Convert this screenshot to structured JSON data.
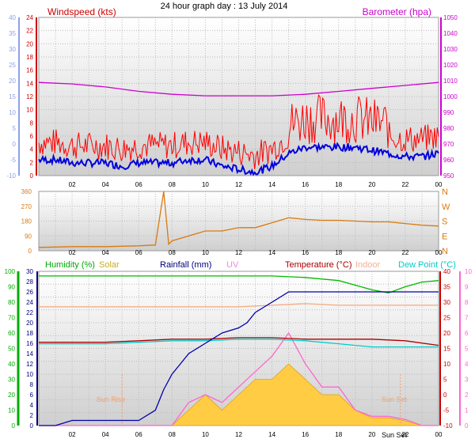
{
  "chart_data": [
    {
      "type": "line",
      "title": "24 hour graph day : 13 July 2014",
      "x_ticks": [
        "02",
        "04",
        "06",
        "08",
        "10",
        "12",
        "14",
        "16",
        "18",
        "20",
        "22",
        "00"
      ],
      "left_axis": {
        "label": "Windspeed (kts)",
        "color": "#cc0000",
        "ticks": [
          "24",
          "22",
          "20",
          "18",
          "16",
          "14",
          "12",
          "10",
          "8",
          "6",
          "4",
          "2",
          "0"
        ],
        "ylim": [
          0,
          25
        ]
      },
      "left_outer_axis": {
        "color": "#8fa0e8",
        "ticks": [
          "40",
          "35",
          "30",
          "25",
          "20",
          "15",
          "10",
          "5",
          "0",
          "-5",
          "-10"
        ]
      },
      "right_axis": {
        "label": "Barometer (hpa)",
        "color": "#cc00cc",
        "ticks": [
          "1050",
          "1040",
          "1030",
          "1020",
          "1010",
          "1000",
          "990",
          "980",
          "970",
          "960",
          "950"
        ],
        "ylim": [
          945,
          1052
        ]
      },
      "series": [
        {
          "name": "Windspeed (kts)",
          "color": "#ff0000",
          "style": "spiky",
          "x": [
            0,
            1,
            2,
            3,
            4,
            5,
            6,
            7,
            8,
            9,
            10,
            11,
            12,
            13,
            14,
            15,
            16,
            17,
            18,
            19,
            20,
            21,
            22,
            23,
            24
          ],
          "y": [
            3,
            3,
            2.5,
            2.5,
            2.5,
            2,
            2.5,
            2.5,
            2.5,
            3,
            3,
            2,
            1.5,
            1,
            2,
            4,
            5,
            5,
            5,
            5,
            4.5,
            4,
            3.5,
            3.5,
            4
          ]
        },
        {
          "name": "Barometer (hpa)",
          "color": "#cc00cc",
          "x": [
            0,
            2,
            4,
            6,
            8,
            10,
            12,
            14,
            16,
            18,
            20,
            22,
            24
          ],
          "y": [
            1008,
            1007,
            1005,
            1002,
            1000,
            999,
            999,
            999,
            1000,
            1002,
            1004,
            1006,
            1008
          ]
        }
      ]
    },
    {
      "type": "line",
      "x_ticks": [
        "02",
        "04",
        "06",
        "08",
        "10",
        "12",
        "14",
        "16",
        "18",
        "20",
        "22",
        "00"
      ],
      "left_axis": {
        "ticks": [
          "360",
          "270",
          "180",
          "90",
          "0"
        ],
        "ylim": [
          0,
          360
        ]
      },
      "right_axis": {
        "ticks": [
          "N",
          "W",
          "S",
          "E",
          "N"
        ]
      },
      "series": [
        {
          "name": "",
          "color": "#d97a10",
          "x": [
            0,
            2,
            4,
            6,
            7,
            7.5,
            7.8,
            8,
            9,
            10,
            11,
            12,
            13,
            14,
            15,
            16,
            17,
            18,
            19,
            20,
            21,
            22,
            23,
            24
          ],
          "y": [
            20,
            25,
            25,
            30,
            35,
            360,
            40,
            60,
            90,
            120,
            120,
            140,
            140,
            170,
            200,
            190,
            185,
            185,
            180,
            175,
            175,
            165,
            155,
            150
          ]
        }
      ]
    },
    {
      "type": "line",
      "x_ticks": [
        "02",
        "04",
        "06",
        "08",
        "10",
        "12",
        "14",
        "16",
        "18",
        "20",
        "22",
        "00"
      ],
      "x_annotations": [
        "Sun Rise",
        "Sun Set",
        "Sun Set"
      ],
      "legend": [
        "Humidity (%)",
        "Solar",
        "Rainfall (mm)",
        "UV",
        "Temperature (°C)",
        "Indoor",
        "Dew Point (°C)"
      ],
      "left_outer_axis": {
        "color": "#00aa00",
        "ticks": [
          "100",
          "90",
          "80",
          "70",
          "60",
          "50",
          "40",
          "30",
          "20",
          "10",
          "0"
        ],
        "ylim": [
          0,
          100
        ]
      },
      "left_axis": {
        "color": "#000080",
        "ticks": [
          "30",
          "28",
          "26",
          "24",
          "22",
          "20",
          "18",
          "16",
          "14",
          "12",
          "10",
          "8",
          "6",
          "4",
          "2",
          "0"
        ],
        "ylim": [
          0,
          30
        ]
      },
      "right_axis": {
        "color": "#cc0000",
        "ticks": [
          "40",
          "35",
          "30",
          "25",
          "20",
          "15",
          "10",
          "5",
          "0",
          "-5",
          "-10"
        ],
        "ylim": [
          -10,
          40
        ]
      },
      "right_outer_axis": {
        "color": "#ff66cc",
        "ticks": [
          "10",
          "9",
          "8",
          "7",
          "6",
          "5",
          "4",
          "3",
          "2",
          "1",
          "0"
        ],
        "ylim": [
          0,
          10
        ]
      },
      "series": [
        {
          "name": "Humidity (%)",
          "color": "#00bb00",
          "x": [
            0,
            2,
            4,
            6,
            8,
            10,
            12,
            14,
            16,
            18,
            19,
            20,
            21,
            22,
            23,
            24
          ],
          "y": [
            97,
            97,
            97,
            97,
            97,
            97,
            97,
            97,
            96,
            94,
            91,
            88,
            86,
            90,
            93,
            94
          ]
        },
        {
          "name": "Rainfall (mm)",
          "color": "#0000aa",
          "x": [
            0,
            1,
            2,
            3,
            4,
            5,
            6,
            7,
            7.5,
            8,
            8.5,
            9,
            10,
            11,
            12,
            12.5,
            13,
            14,
            15,
            16,
            17,
            18,
            19,
            20,
            21,
            22,
            23,
            24
          ],
          "y": [
            0,
            0,
            1,
            1,
            1,
            1,
            1,
            3,
            7,
            10,
            12,
            14,
            16,
            18,
            19,
            20,
            22,
            24,
            26,
            26,
            26,
            26,
            26,
            26,
            26,
            26,
            26,
            26
          ]
        },
        {
          "name": "Temperature (°C)",
          "color": "#aa0000",
          "x": [
            0,
            2,
            4,
            6,
            8,
            10,
            12,
            14,
            16,
            18,
            20,
            22,
            24
          ],
          "y": [
            17,
            17,
            17,
            17.5,
            18,
            18,
            18.5,
            18.5,
            18,
            18,
            18,
            17.5,
            16
          ]
        },
        {
          "name": "Dew Point (°C)",
          "color": "#00cccc",
          "x": [
            0,
            2,
            4,
            6,
            8,
            10,
            12,
            14,
            16,
            18,
            20,
            22,
            24
          ],
          "y": [
            16.5,
            16.5,
            16.5,
            17,
            17.5,
            17.5,
            18,
            18,
            17.5,
            16.5,
            15.5,
            15.5,
            15.5
          ]
        },
        {
          "name": "Indoor",
          "color": "#f4a880",
          "x": [
            0,
            2,
            4,
            6,
            8,
            10,
            12,
            14,
            16,
            18,
            20,
            22,
            24
          ],
          "y": [
            28.5,
            28.5,
            28.5,
            28.5,
            28.5,
            28.5,
            28.5,
            29,
            29.5,
            29,
            29,
            29,
            29
          ]
        },
        {
          "name": "Solar",
          "color": "#ffcc44",
          "fill": true,
          "x": [
            0,
            8,
            9,
            10,
            11,
            12,
            13,
            14,
            15,
            16,
            17,
            18,
            19,
            20,
            21,
            22,
            23,
            24
          ],
          "y": [
            0,
            0,
            1,
            2,
            1,
            2,
            3,
            3,
            4,
            3,
            2,
            2,
            1,
            0.5,
            0.5,
            0.3,
            0,
            0
          ]
        },
        {
          "name": "UV",
          "color": "#ff66cc",
          "x": [
            0,
            8,
            9,
            10,
            11,
            12,
            13,
            14,
            15,
            16,
            17,
            18,
            19,
            20,
            21,
            22,
            23,
            24
          ],
          "y": [
            0,
            0,
            1.5,
            2,
            1.5,
            2.5,
            3.5,
            4.5,
            6,
            4,
            2.5,
            2.5,
            1,
            0.6,
            0.6,
            0.4,
            0,
            0
          ]
        }
      ]
    }
  ]
}
